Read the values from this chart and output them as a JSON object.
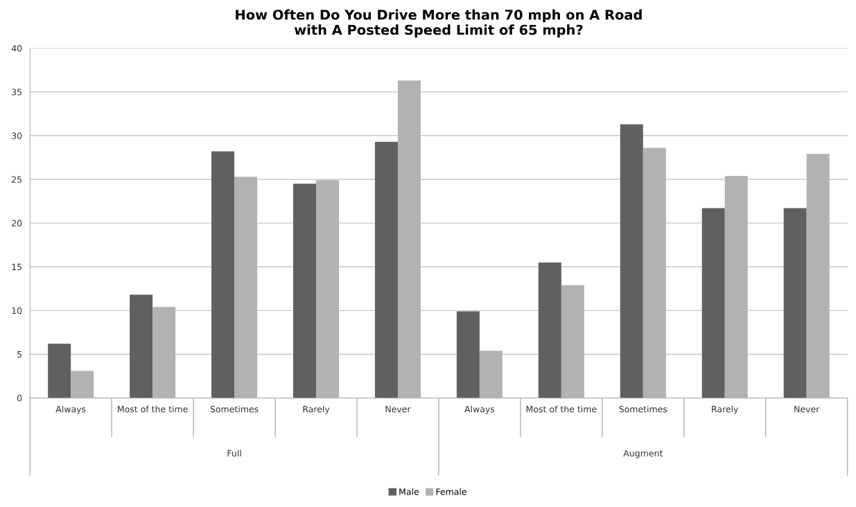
{
  "chart_data": {
    "type": "bar",
    "title": "How Often Do You Drive More than 70 mph on A Road\nwith A Posted Speed Limit of 65 mph?",
    "categories": [
      "Always",
      "Most of the time",
      "Sometimes",
      "Rarely",
      "Never",
      "Always",
      "Most of the time",
      "Sometimes",
      "Rarely",
      "Never"
    ],
    "series": [
      {
        "name": "Male",
        "color": "#606060",
        "values": [
          6.2,
          11.8,
          28.2,
          24.5,
          29.3,
          9.9,
          15.5,
          31.3,
          21.7,
          21.7
        ]
      },
      {
        "name": "Female",
        "color": "#b2b2b2",
        "values": [
          3.1,
          10.4,
          25.3,
          24.9,
          36.3,
          5.4,
          12.9,
          28.6,
          25.4,
          27.9
        ]
      }
    ],
    "annotations": [
      "Full",
      "Augment"
    ],
    "ylim": [
      0,
      40
    ],
    "yticks": [
      0,
      5,
      10,
      15,
      20,
      25,
      30,
      35,
      40
    ],
    "grid": "y",
    "legend": "bottom"
  }
}
